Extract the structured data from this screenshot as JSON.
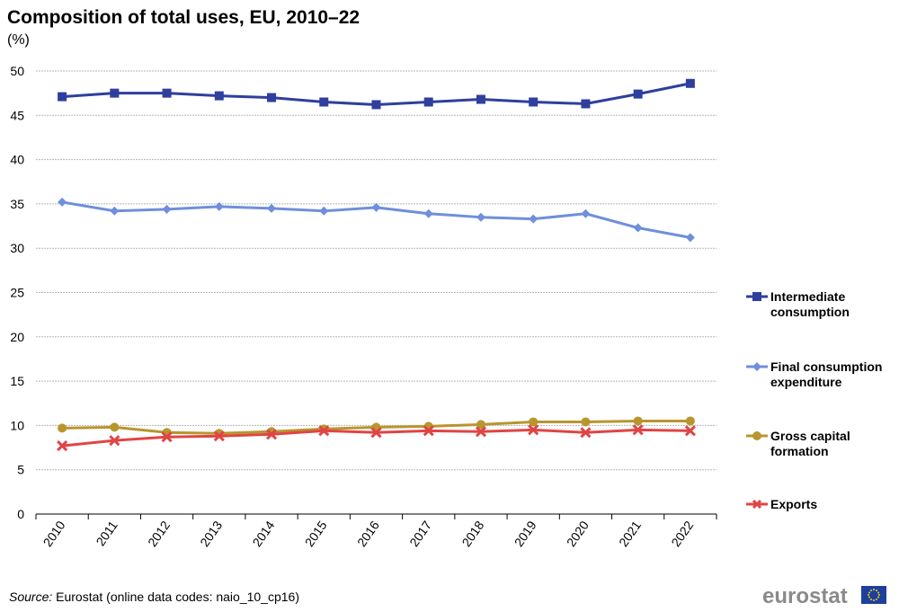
{
  "chart_data": {
    "type": "line",
    "title": "Composition of total uses, EU, 2010–22",
    "unit": "(%)",
    "categories": [
      "2010",
      "2011",
      "2012",
      "2013",
      "2014",
      "2015",
      "2016",
      "2017",
      "2018",
      "2019",
      "2020",
      "2021",
      "2022"
    ],
    "ylim": [
      0,
      50
    ],
    "yticks": [
      0,
      5,
      10,
      15,
      20,
      25,
      30,
      35,
      40,
      45,
      50
    ],
    "grid": true,
    "legend_position": "right",
    "series": [
      {
        "name": "Intermediate consumption",
        "color": "#2e3f9e",
        "marker": "square",
        "values": [
          47.1,
          47.5,
          47.5,
          47.2,
          47.0,
          46.5,
          46.2,
          46.5,
          46.8,
          46.5,
          46.3,
          47.4,
          48.6
        ]
      },
      {
        "name": "Final consumption expenditure",
        "color": "#6f8fdb",
        "marker": "diamond",
        "values": [
          35.2,
          34.2,
          34.4,
          34.7,
          34.5,
          34.2,
          34.6,
          33.9,
          33.5,
          33.3,
          33.9,
          32.3,
          31.2
        ]
      },
      {
        "name": "Gross capital formation",
        "color": "#b8962e",
        "marker": "circle",
        "values": [
          9.7,
          9.8,
          9.2,
          9.1,
          9.3,
          9.6,
          9.8,
          9.9,
          10.1,
          10.4,
          10.4,
          10.5,
          10.5
        ]
      },
      {
        "name": "Exports",
        "color": "#e04545",
        "marker": "x",
        "values": [
          7.7,
          8.3,
          8.7,
          8.8,
          9.0,
          9.4,
          9.2,
          9.4,
          9.3,
          9.5,
          9.2,
          9.5,
          9.4
        ]
      }
    ]
  },
  "legend": [
    {
      "label": "Intermediate consumption"
    },
    {
      "label": "Final consumption expenditure"
    },
    {
      "label": "Gross capital formation"
    },
    {
      "label": "Exports"
    }
  ],
  "source": {
    "prefix": "Source:",
    "text": " Eurostat (online data codes: naio_10_cp16)"
  },
  "logo": {
    "text": "eurostat"
  }
}
